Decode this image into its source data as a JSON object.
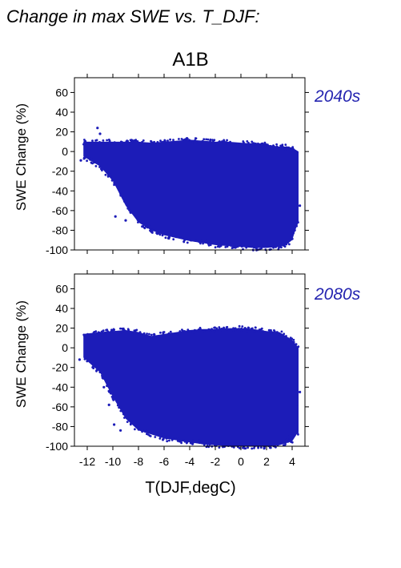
{
  "header": {
    "title": "Change in max SWE vs. T_DJF:",
    "scenario": "A1B"
  },
  "colors": {
    "points": "#1c1cb8",
    "period_label": "#2424b0",
    "axis": "#000000"
  },
  "chart_data": [
    {
      "type": "scatter",
      "period": "2040s",
      "xlabel": "",
      "ylabel": "SWE Change (%)",
      "xlim": [
        -13,
        5
      ],
      "ylim": [
        -100,
        75
      ],
      "xticks": [
        -12,
        -10,
        -8,
        -6,
        -4,
        -2,
        0,
        2,
        4
      ],
      "yticks": [
        -100,
        -80,
        -60,
        -40,
        -20,
        0,
        20,
        40,
        60
      ],
      "x_tick_labels_shown": false,
      "grid": false,
      "envelope": {
        "x": [
          -12.3,
          -11,
          -10,
          -9,
          -8,
          -7,
          -6,
          -5,
          -4,
          -3,
          -2,
          -1,
          0,
          1,
          2,
          3,
          3.5,
          4,
          4.5
        ],
        "y_upper": [
          10,
          10,
          10,
          10,
          10,
          9,
          10,
          11,
          12,
          11,
          10,
          10,
          9,
          8,
          7,
          5,
          5,
          4,
          0
        ],
        "y_lower": [
          -5,
          -15,
          -30,
          -55,
          -72,
          -80,
          -85,
          -88,
          -91,
          -93,
          -95,
          -96,
          -97,
          -98,
          -98,
          -97,
          -95,
          -90,
          -70
        ]
      },
      "outliers": [
        {
          "x": -11.2,
          "y": 24
        },
        {
          "x": -11.0,
          "y": 18
        },
        {
          "x": -12.5,
          "y": -9
        },
        {
          "x": -10.2,
          "y": -24
        },
        {
          "x": -9.6,
          "y": -36
        },
        {
          "x": -9.2,
          "y": -47
        },
        {
          "x": -8.6,
          "y": -62
        },
        {
          "x": -9.8,
          "y": -66
        },
        {
          "x": -9.0,
          "y": -70
        },
        {
          "x": 4.3,
          "y": -35
        },
        {
          "x": 4.6,
          "y": -55
        },
        {
          "x": 4.1,
          "y": -78
        },
        {
          "x": 3.9,
          "y": -88
        }
      ]
    },
    {
      "type": "scatter",
      "period": "2080s",
      "xlabel": "T(DJF,degC)",
      "ylabel": "SWE Change (%)",
      "xlim": [
        -13,
        5
      ],
      "ylim": [
        -100,
        75
      ],
      "xticks": [
        -12,
        -10,
        -8,
        -6,
        -4,
        -2,
        0,
        2,
        4
      ],
      "yticks": [
        -100,
        -80,
        -60,
        -40,
        -20,
        0,
        20,
        40,
        60
      ],
      "x_tick_labels_shown": true,
      "grid": false,
      "envelope": {
        "x": [
          -12.3,
          -11,
          -10,
          -9,
          -8,
          -7,
          -6,
          -5,
          -4,
          -3,
          -2,
          -1,
          0,
          1,
          2,
          3,
          3.5,
          4,
          4.5
        ],
        "y_upper": [
          14,
          16,
          17,
          18,
          16,
          12,
          14,
          16,
          18,
          19,
          19,
          20,
          20,
          19,
          17,
          16,
          12,
          8,
          0
        ],
        "y_lower": [
          -10,
          -25,
          -50,
          -72,
          -84,
          -88,
          -92,
          -94,
          -96,
          -98,
          -99,
          -100,
          -100,
          -100,
          -100,
          -99,
          -97,
          -95,
          -85
        ]
      },
      "outliers": [
        {
          "x": -12.6,
          "y": -12
        },
        {
          "x": -11.2,
          "y": -22
        },
        {
          "x": -10.7,
          "y": -40
        },
        {
          "x": -10.3,
          "y": -58
        },
        {
          "x": -9.9,
          "y": -78
        },
        {
          "x": -9.4,
          "y": -84
        },
        {
          "x": 4.3,
          "y": -10
        },
        {
          "x": 4.6,
          "y": -45
        },
        {
          "x": 4.4,
          "y": -60
        },
        {
          "x": 4.1,
          "y": -78
        },
        {
          "x": 3.8,
          "y": -90
        }
      ]
    }
  ]
}
